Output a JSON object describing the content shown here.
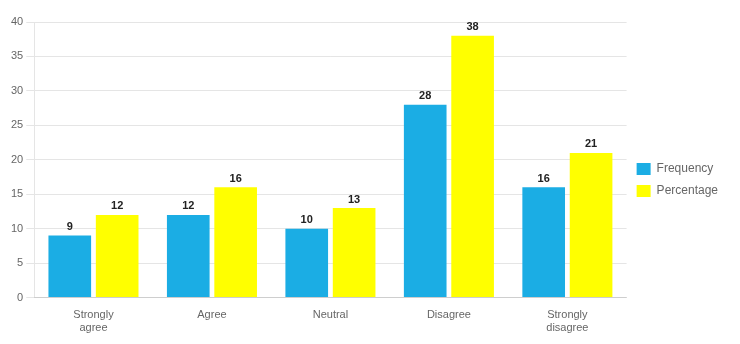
{
  "chart_data": {
    "type": "bar",
    "categories": [
      "Strongly\nagree",
      "Agree",
      "Neutral",
      "Disagree",
      "Strongly\ndisagree"
    ],
    "series": [
      {
        "name": "Frequency",
        "color": "#1BADE4",
        "values": [
          9,
          12,
          10,
          28,
          16
        ]
      },
      {
        "name": "Percentage",
        "color": "#FFFF00",
        "values": [
          12,
          16,
          13,
          38,
          21
        ]
      }
    ],
    "ylim": [
      0,
      40
    ],
    "yticks": [
      0,
      5,
      10,
      15,
      20,
      25,
      30,
      35,
      40
    ],
    "grid": true,
    "legend": "right",
    "data_labels": true
  }
}
